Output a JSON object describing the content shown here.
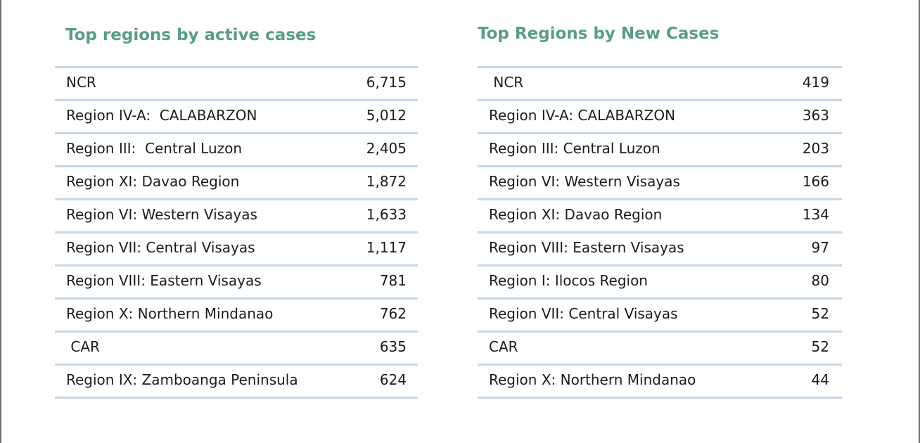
{
  "chart_data": [
    {
      "type": "table",
      "title": "Top regions by active cases",
      "categories": [
        "NCR",
        "Region IV-A:  CALABARZON",
        "Region III:  Central Luzon",
        "Region XI: Davao Region",
        "Region VI: Western Visayas",
        "Region VII: Central Visayas",
        "Region VIII: Eastern Visayas",
        "Region X: Northern Mindanao",
        " CAR",
        "Region IX: Zamboanga Peninsula"
      ],
      "values": [
        "6,715",
        "5,012",
        "2,405",
        "1,872",
        "1,633",
        "1,117",
        "781",
        "762",
        "635",
        "624"
      ],
      "title_color": "#5a9d86",
      "rule_color": "#c7d7ea"
    },
    {
      "type": "table",
      "title": "Top Regions by New Cases",
      "categories": [
        " NCR",
        "Region IV-A: CALABARZON",
        "Region III: Central Luzon",
        "Region VI: Western Visayas",
        "Region XI: Davao Region",
        "Region VIII: Eastern Visayas",
        "Region I: Ilocos Region",
        "Region VII: Central Visayas",
        "CAR",
        "Region X: Northern Mindanao"
      ],
      "values": [
        "419",
        "363",
        "203",
        "166",
        "134",
        "97",
        "80",
        "52",
        "52",
        "44"
      ],
      "title_color": "#5a9d86",
      "rule_color": "#c7d7ea"
    }
  ]
}
